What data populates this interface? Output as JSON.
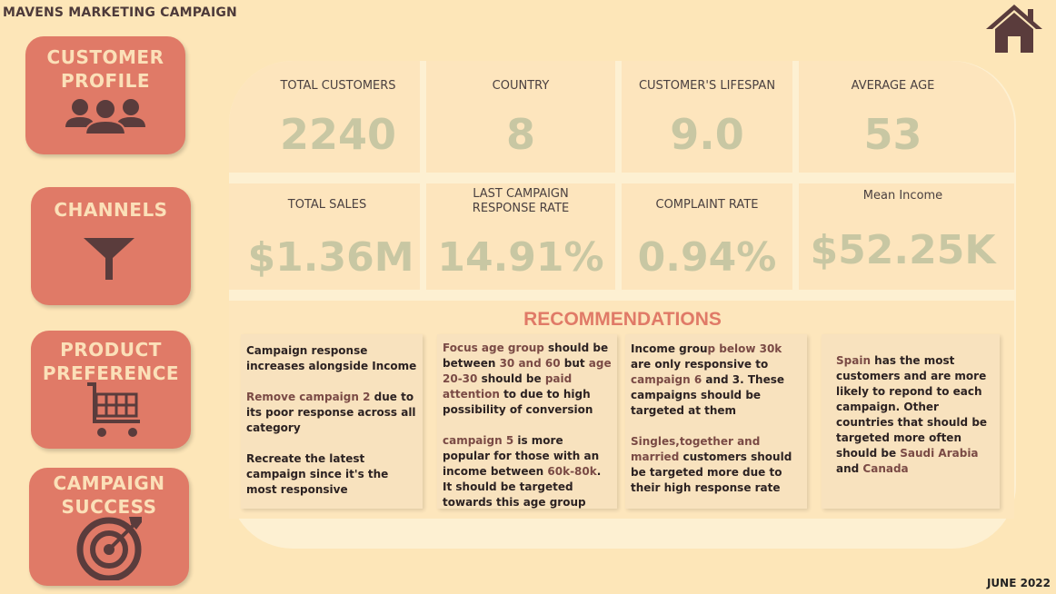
{
  "app": {
    "title": "MAVENS MARKETING CAMPAIGN",
    "date": "JUNE 2022"
  },
  "nav": {
    "customer_profile": {
      "line1": "CUSTOMER",
      "line2": "PROFILE"
    },
    "channels": {
      "line1": "CHANNELS"
    },
    "product_preference": {
      "line1": "PRODUCT",
      "line2": "PREFERENCE"
    },
    "campaign_success": {
      "line1": "CAMPAIGN",
      "line2": "SUCCESS"
    }
  },
  "kpis": {
    "total_customers": {
      "label": "TOTAL CUSTOMERS",
      "value": "2240"
    },
    "country": {
      "label": "COUNTRY",
      "value": "8"
    },
    "lifespan": {
      "label": "CUSTOMER'S LIFESPAN",
      "value": "9.0"
    },
    "average_age": {
      "label": "AVERAGE AGE",
      "value": "53"
    },
    "total_sales": {
      "label": "TOTAL SALES",
      "value": "$1.36M"
    },
    "last_response": {
      "label": "LAST CAMPAIGN RESPONSE RATE",
      "value": "14.91%"
    },
    "complaint_rate": {
      "label": "COMPLAINT RATE",
      "value": "0.94%"
    },
    "mean_income": {
      "label": "Mean Income",
      "value": "$52.25K"
    }
  },
  "recommendations": {
    "title": "RECOMMENDATIONS",
    "c1": {
      "p1": "Campaign response increases alongside Income",
      "p2_hl": "Remove campaign 2",
      "p2_rest": " due to its poor response across all category",
      "p3": "Recreate  the latest campaign since it's the most responsive"
    },
    "c2": {
      "p1_hl1": "Focus age group",
      "p1_t1": " should be between ",
      "p1_hl2": "30 and 60",
      "p1_t2": " but  ",
      "p1_hl3": "age 20-30",
      "p1_t3": " should be ",
      "p1_hl4": "paid attention",
      "p1_t4": " to due to high possibility of conversion",
      "p2_hl": "campaign 5",
      "p2_t1": " is more popular for those with an income between ",
      "p2_hl2": "60k-80k",
      "p2_t2": ". It should be targeted towards this age group"
    },
    "c3": {
      "p1_t1": "Income grou",
      "p1_hl1": "p below 30k",
      "p1_t2": " are only responsive to ",
      "p1_hl2": "campaign 6",
      "p1_t3": " and 3. These campaigns should be targeted at them",
      "p2_hl": "Singles,together and married",
      "p2_t": " customers should be targeted more due to their high response rate"
    },
    "c4": {
      "hl1": "Spain",
      "t1": " has the most customers and are more likely to repond to each campaign. Other countries that should be targeted more often should be ",
      "hl2": "Saudi Arabia",
      "t2": " and ",
      "hl3": "Canada"
    }
  },
  "colors": {
    "accent": "#e07a67",
    "background": "#fde6b8",
    "panel": "#fdf0d2",
    "value": "#c8c7a3",
    "icon": "#5a3c3c"
  },
  "icons": [
    "home-icon",
    "people-icon",
    "funnel-icon",
    "cart-icon",
    "target-icon"
  ]
}
